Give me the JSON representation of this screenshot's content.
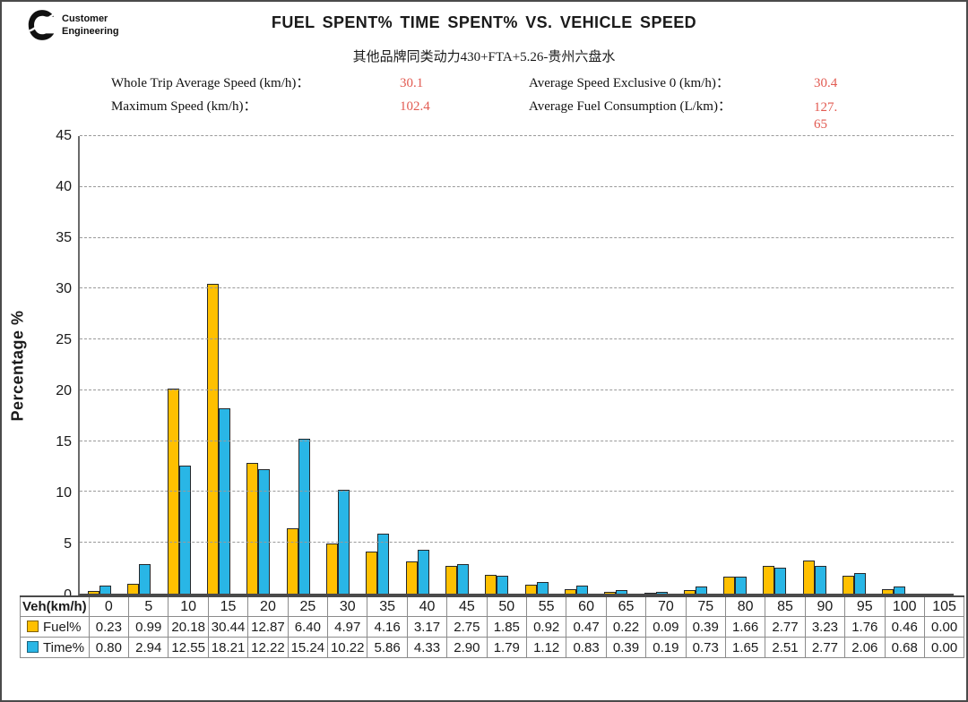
{
  "theme": {
    "stat_value": "#E25B52",
    "grid": "#9A9A9A",
    "axis": "#4A4A4A",
    "bar_border": "#26282B",
    "table_border": "#8C8C8C"
  },
  "logo": {
    "line1": "Customer",
    "line2": "Engineering"
  },
  "header": {
    "title": "FUEL SPENT% TIME SPENT% VS. VEHICLE SPEED",
    "subtitle": "其他品牌同类动力430+FTA+5.26-贵州六盘水"
  },
  "stats": {
    "items": [
      {
        "label": "Whole Trip Average Speed (km/h)：",
        "value": "30.1"
      },
      {
        "label": "Average Speed Exclusive 0 (km/h)：",
        "value": "30.4"
      },
      {
        "label": "Maximum Speed (km/h)：",
        "value": "102.4"
      },
      {
        "label": "Average Fuel Consumption (L/km)：",
        "value": "127.65",
        "value_lines": [
          "127.",
          "65"
        ]
      }
    ]
  },
  "chart_data": {
    "type": "bar",
    "title": "FUEL SPENT% TIME SPENT% VS. VEHICLE SPEED",
    "xlabel": "Veh(km/h)",
    "ylabel": "Percentage %",
    "ylim": [
      0,
      45
    ],
    "yticks": [
      0,
      5,
      10,
      15,
      20,
      25,
      30,
      35,
      40,
      45
    ],
    "grid": true,
    "legend_position": "table-row-headers",
    "categories": [
      0,
      5,
      10,
      15,
      20,
      25,
      30,
      35,
      40,
      45,
      50,
      55,
      60,
      65,
      70,
      75,
      80,
      85,
      90,
      95,
      100,
      105
    ],
    "series": [
      {
        "name": "Fuel%",
        "color": "#FFC000",
        "swatch_border": "#7F6000",
        "values": [
          0.23,
          0.99,
          20.18,
          30.44,
          12.87,
          6.4,
          4.97,
          4.16,
          3.17,
          2.75,
          1.85,
          0.92,
          0.47,
          0.22,
          0.09,
          0.39,
          1.66,
          2.77,
          3.23,
          1.76,
          0.46,
          0.0
        ]
      },
      {
        "name": "Time%",
        "color": "#29B6E6",
        "swatch_border": "#17637F",
        "values": [
          0.8,
          2.94,
          12.55,
          18.21,
          12.22,
          15.24,
          10.22,
          5.86,
          4.33,
          2.9,
          1.79,
          1.12,
          0.83,
          0.39,
          0.19,
          0.73,
          1.65,
          2.51,
          2.77,
          2.06,
          0.68,
          0.0
        ]
      }
    ]
  }
}
